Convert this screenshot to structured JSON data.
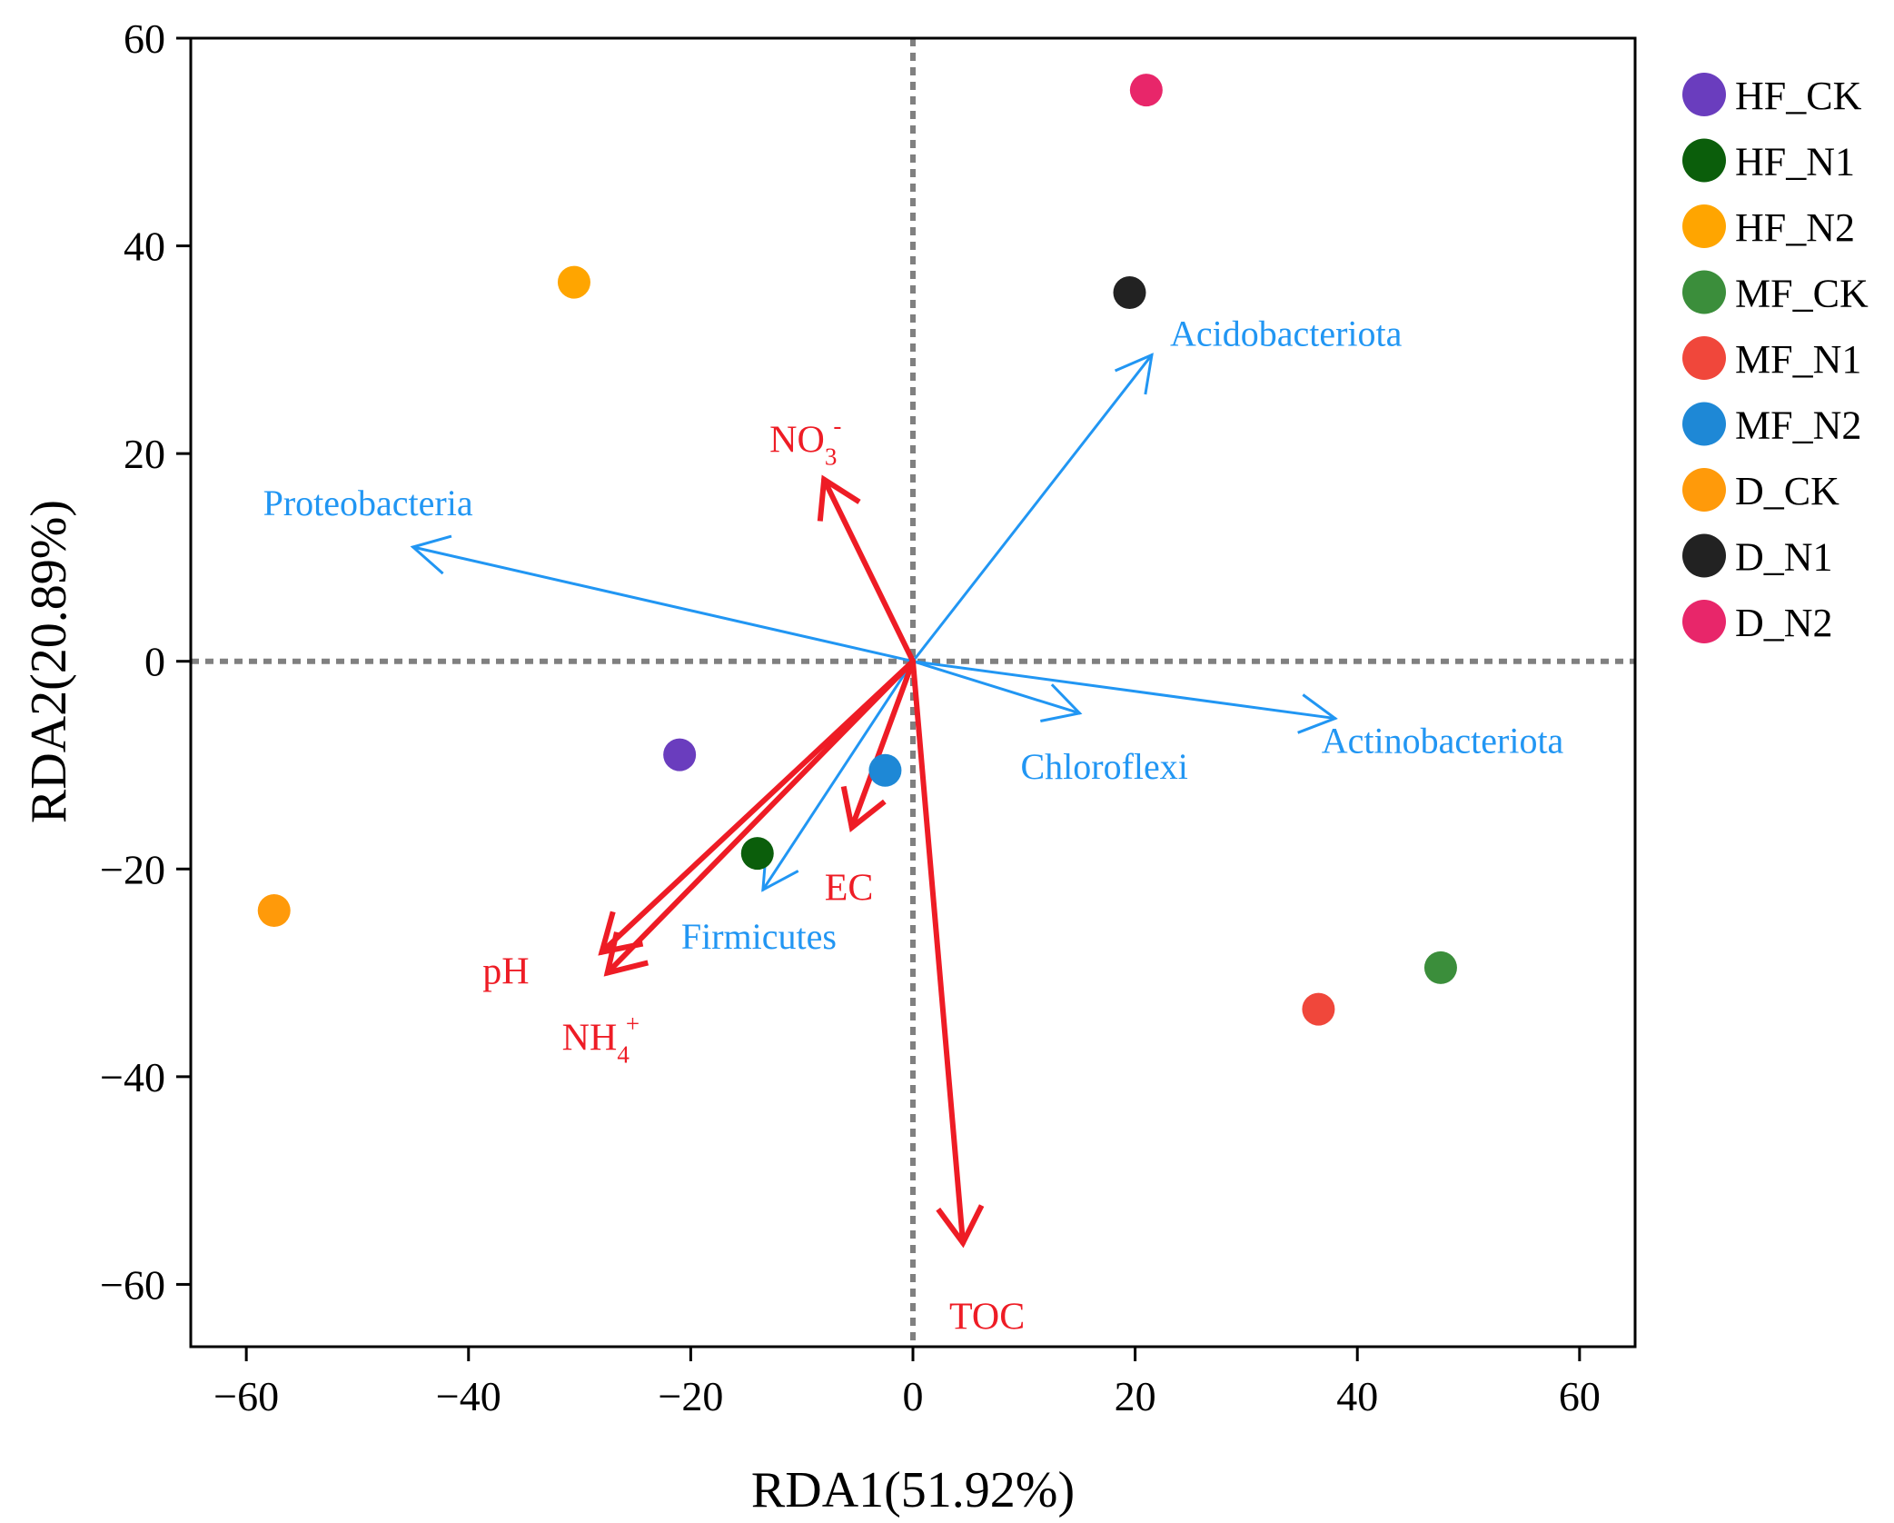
{
  "chart_data": {
    "type": "scatter",
    "subtype": "rda-biplot",
    "title": "",
    "xlabel": "RDA1(51.92%)",
    "ylabel": "RDA2(20.89%)",
    "xlim": [
      -65,
      65
    ],
    "ylim": [
      -66,
      60
    ],
    "xticks": [
      -60,
      -40,
      -20,
      0,
      20,
      40,
      60
    ],
    "yticks": [
      -60,
      -40,
      -20,
      0,
      20,
      40,
      60
    ],
    "xtick_labels": [
      "−60",
      "−40",
      "−20",
      "0",
      "20",
      "40",
      "60"
    ],
    "ytick_labels": [
      "−60",
      "−40",
      "−20",
      "0",
      "20",
      "40",
      "60"
    ],
    "grid": false,
    "zero_lines": "dashed",
    "legend_position": "right",
    "samples": [
      {
        "name": "HF_CK",
        "x": -21,
        "y": -9,
        "color": "#6a3dbe"
      },
      {
        "name": "HF_N1",
        "x": -14,
        "y": -18.5,
        "color": "#0b5e0b"
      },
      {
        "name": "HF_N2",
        "x": -30.5,
        "y": 36.5,
        "color": "#ffa500"
      },
      {
        "name": "MF_CK",
        "x": 47.5,
        "y": -29.5,
        "color": "#3b8e3b"
      },
      {
        "name": "MF_N1",
        "x": 36.5,
        "y": -33.5,
        "color": "#f0473b"
      },
      {
        "name": "MF_N2",
        "x": -2.5,
        "y": -10.5,
        "color": "#1e88d6"
      },
      {
        "name": "D_CK",
        "x": -57.5,
        "y": -24,
        "color": "#ff9a0a"
      },
      {
        "name": "D_N1",
        "x": 19.5,
        "y": 35.5,
        "color": "#222222"
      },
      {
        "name": "D_N2",
        "x": 21,
        "y": 55,
        "color": "#e8266a"
      }
    ],
    "environmental_vectors": [
      {
        "name": "NO3-",
        "base": "NO",
        "sub": "3",
        "sup": "-",
        "x": -8,
        "y": 17.5
      },
      {
        "name": "EC",
        "x": -5.5,
        "y": -16
      },
      {
        "name": "pH",
        "x": -28,
        "y": -28
      },
      {
        "name": "NH4+",
        "base": "NH",
        "sub": "4",
        "sup": "+",
        "x": -27.5,
        "y": -30
      },
      {
        "name": "TOC",
        "x": 4.5,
        "y": -56
      }
    ],
    "species_vectors": [
      {
        "name": "Acidobacteriota",
        "x": 21.5,
        "y": 29.5
      },
      {
        "name": "Proteobacteria",
        "x": -45,
        "y": 11
      },
      {
        "name": "Chloroflexi",
        "x": 15,
        "y": -5
      },
      {
        "name": "Actinobacteriota",
        "x": 38,
        "y": -5.5
      },
      {
        "name": "Firmicutes",
        "x": -13.5,
        "y": -22
      }
    ],
    "colors": {
      "environmental": "#ee1c25",
      "species": "#2196f3",
      "zero_line": "#808080"
    }
  }
}
